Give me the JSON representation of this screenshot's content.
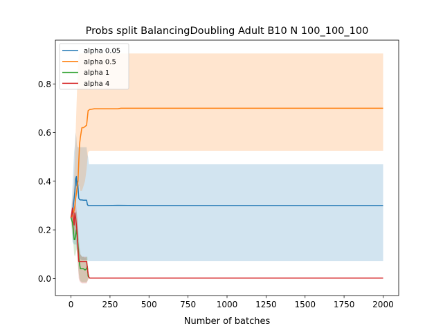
{
  "chart_data": {
    "type": "line",
    "title": "Probs split BalancingDoubling Adult B10 N 100_100_100",
    "xlabel": "Number of batches",
    "ylabel": "",
    "xlim": [
      -100,
      2100
    ],
    "ylim": [
      -0.07,
      0.98
    ],
    "xticks": [
      0,
      250,
      500,
      750,
      1000,
      1250,
      1500,
      1750,
      2000
    ],
    "xtick_labels": [
      "0",
      "250",
      "500",
      "750",
      "1000",
      "1250",
      "1500",
      "1750",
      "2000"
    ],
    "yticks": [
      0.0,
      0.2,
      0.4,
      0.6,
      0.8
    ],
    "ytick_labels": [
      "0.0",
      "0.2",
      "0.4",
      "0.6",
      "0.8"
    ],
    "grid": false,
    "legend_position": "top-left",
    "series": [
      {
        "name": "alpha 0.05",
        "color": "#1f77b4",
        "x": [
          0,
          10,
          20,
          25,
          30,
          35,
          38,
          42,
          46,
          50,
          55,
          60,
          70,
          80,
          90,
          100,
          105,
          110,
          115,
          120,
          150,
          200,
          300,
          500,
          1000,
          1500,
          2000
        ],
        "y": [
          0.25,
          0.27,
          0.33,
          0.36,
          0.41,
          0.42,
          0.38,
          0.4,
          0.37,
          0.33,
          0.325,
          0.323,
          0.323,
          0.322,
          0.322,
          0.322,
          0.305,
          0.3,
          0.3,
          0.3,
          0.3,
          0.3,
          0.301,
          0.3,
          0.3,
          0.3,
          0.3
        ],
        "band_lower": [
          0.25,
          0.15,
          0.14,
          0.14,
          0.14,
          0.14,
          0.12,
          0.12,
          0.11,
          0.1,
          0.09,
          0.08,
          0.075,
          0.075,
          0.075,
          0.075,
          0.075,
          0.073,
          0.072,
          0.072,
          0.072,
          0.072,
          0.072,
          0.072,
          0.072,
          0.072,
          0.072
        ],
        "band_upper": [
          0.25,
          0.38,
          0.52,
          0.55,
          0.6,
          0.58,
          0.55,
          0.54,
          0.54,
          0.54,
          0.54,
          0.54,
          0.54,
          0.54,
          0.54,
          0.54,
          0.51,
          0.5,
          0.47,
          0.47,
          0.47,
          0.47,
          0.47,
          0.47,
          0.47,
          0.47,
          0.47
        ]
      },
      {
        "name": "alpha 0.5",
        "color": "#ff7f0e",
        "x": [
          0,
          10,
          20,
          25,
          30,
          35,
          40,
          45,
          50,
          55,
          60,
          70,
          80,
          90,
          100,
          110,
          120,
          150,
          200,
          300,
          320,
          500,
          1000,
          1500,
          2000
        ],
        "y": [
          0.25,
          0.26,
          0.28,
          0.3,
          0.33,
          0.35,
          0.38,
          0.4,
          0.48,
          0.55,
          0.58,
          0.62,
          0.62,
          0.625,
          0.63,
          0.69,
          0.695,
          0.698,
          0.698,
          0.698,
          0.7,
          0.7,
          0.7,
          0.7,
          0.7
        ],
        "band_lower": [
          0.25,
          0.18,
          0.2,
          0.25,
          0.3,
          0.33,
          0.35,
          0.36,
          0.38,
          0.38,
          0.36,
          0.36,
          0.38,
          0.4,
          0.45,
          0.52,
          0.525,
          0.525,
          0.525,
          0.525,
          0.525,
          0.525,
          0.525,
          0.525,
          0.525
        ],
        "band_upper": [
          0.25,
          0.3,
          0.4,
          0.5,
          0.6,
          0.7,
          0.8,
          0.88,
          0.92,
          0.925,
          0.925,
          0.925,
          0.925,
          0.925,
          0.925,
          0.925,
          0.925,
          0.925,
          0.925,
          0.925,
          0.925,
          0.925,
          0.925,
          0.925,
          0.925
        ]
      },
      {
        "name": "alpha 1",
        "color": "#2ca02c",
        "x": [
          0,
          10,
          15,
          20,
          25,
          30,
          35,
          40,
          45,
          50,
          55,
          60,
          70,
          80,
          90,
          100,
          105,
          110,
          115,
          120,
          130,
          150,
          200,
          500,
          1000,
          1500,
          2000
        ],
        "y": [
          0.25,
          0.23,
          0.2,
          0.16,
          0.16,
          0.18,
          0.2,
          0.17,
          0.14,
          0.09,
          0.06,
          0.04,
          0.04,
          0.04,
          0.035,
          0.04,
          0.05,
          0.01,
          0.005,
          0.002,
          0.002,
          0.002,
          0.002,
          0.002,
          0.002,
          0.002,
          0.002
        ],
        "band_lower": [
          0.25,
          0.2,
          0.15,
          0.1,
          0.09,
          0.1,
          0.12,
          0.1,
          0.06,
          0.02,
          0.0,
          -0.01,
          -0.015,
          -0.015,
          -0.015,
          -0.015,
          -0.01,
          0.0,
          0.0,
          0.0,
          0.0,
          0.0,
          0.0,
          0.0,
          0.0,
          0.0,
          0.0
        ],
        "band_upper": [
          0.25,
          0.26,
          0.25,
          0.22,
          0.24,
          0.26,
          0.28,
          0.25,
          0.22,
          0.17,
          0.13,
          0.1,
          0.09,
          0.09,
          0.085,
          0.09,
          0.09,
          0.03,
          0.01,
          0.004,
          0.004,
          0.004,
          0.004,
          0.004,
          0.004,
          0.004,
          0.004
        ]
      },
      {
        "name": "alpha 4",
        "color": "#d62728",
        "x": [
          0,
          5,
          10,
          15,
          20,
          25,
          30,
          35,
          40,
          45,
          50,
          55,
          60,
          70,
          80,
          90,
          100,
          110,
          115,
          120,
          130,
          150,
          200,
          500,
          1000,
          1500,
          2000
        ],
        "y": [
          0.25,
          0.27,
          0.29,
          0.25,
          0.22,
          0.27,
          0.25,
          0.22,
          0.18,
          0.12,
          0.07,
          0.07,
          0.07,
          0.07,
          0.07,
          0.07,
          0.07,
          0.02,
          0.005,
          0.002,
          0.002,
          0.002,
          0.002,
          0.002,
          0.002,
          0.002,
          0.002
        ],
        "band_lower": [
          0.25,
          0.24,
          0.24,
          0.2,
          0.17,
          0.2,
          0.18,
          0.14,
          0.1,
          0.05,
          0.0,
          -0.01,
          -0.015,
          -0.02,
          -0.02,
          -0.02,
          -0.02,
          -0.005,
          0.0,
          0.0,
          0.0,
          0.0,
          0.0,
          0.0,
          0.0,
          0.0,
          0.0
        ],
        "band_upper": [
          0.25,
          0.3,
          0.33,
          0.3,
          0.27,
          0.33,
          0.32,
          0.29,
          0.25,
          0.19,
          0.13,
          0.12,
          0.1,
          0.09,
          0.09,
          0.09,
          0.09,
          0.04,
          0.01,
          0.004,
          0.004,
          0.004,
          0.004,
          0.004,
          0.004,
          0.004,
          0.004
        ]
      }
    ]
  }
}
